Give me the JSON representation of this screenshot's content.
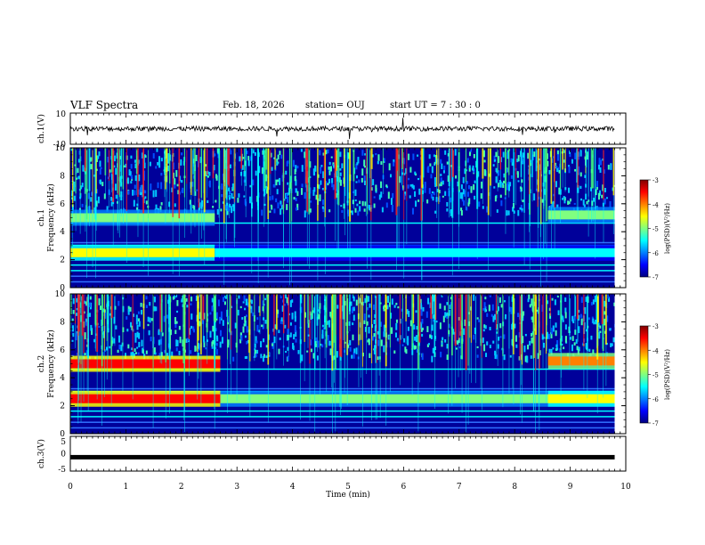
{
  "header": {
    "title": "VLF Spectra",
    "date": "Feb. 18, 2026",
    "station": "station= OUJ",
    "start": "start  UT  =  7 : 30 : 0"
  },
  "panels": {
    "ch1": {
      "label": "ch.1(V)",
      "ticks": [
        "10",
        "-10"
      ],
      "ymin": -10,
      "ymax": 10
    },
    "spec1": {
      "label": "ch.1",
      "ylabel": "Frequency (kHz)",
      "ticks": [
        "0",
        "2",
        "4",
        "6",
        "8",
        "10"
      ]
    },
    "spec2": {
      "label": "ch.2",
      "ylabel": "Frequency (kHz)",
      "ticks": [
        "0",
        "2",
        "4",
        "6",
        "8",
        "10"
      ]
    },
    "ch3": {
      "label": "ch.3(V)",
      "ticks": [
        "5",
        "0",
        "-5"
      ],
      "ymin": -5,
      "ymax": 5,
      "value": -1
    }
  },
  "xaxis": {
    "label": "Time (min)",
    "ticks": [
      "0",
      "1",
      "2",
      "3",
      "4",
      "5",
      "6",
      "7",
      "8",
      "9",
      "10"
    ]
  },
  "colorbar": {
    "label": "log(PSD)(V²/Hz)",
    "ticks": [
      "-3",
      "-4",
      "-5",
      "-6",
      "-7"
    ]
  },
  "colors": {
    "background": "#ffffff",
    "axis": "#000000",
    "cmap": [
      "#000080",
      "#0000ff",
      "#0080ff",
      "#00ffff",
      "#80ff80",
      "#ffff00",
      "#ff8000",
      "#ff0000",
      "#800000"
    ]
  },
  "chart_data": {
    "type": "heatmap",
    "title": "VLF Spectra",
    "xlabel": "Time (min)",
    "ylabel": "Frequency (kHz)",
    "xlim": [
      0,
      10
    ],
    "ylim": [
      0,
      10
    ],
    "clim": [
      -7,
      -3
    ],
    "data_end_min": 9.8,
    "series": [
      {
        "name": "ch.1",
        "bands": [
          {
            "freq_khz": 5.0,
            "start_min": 0.0,
            "end_min": 2.6,
            "level": -4.8
          },
          {
            "freq_khz": 2.5,
            "start_min": 0.0,
            "end_min": 2.6,
            "level": -4.6
          },
          {
            "freq_khz": 2.5,
            "start_min": 2.6,
            "end_min": 9.8,
            "level": -5.3
          },
          {
            "freq_khz": 5.2,
            "start_min": 8.6,
            "end_min": 9.8,
            "level": -5.2
          }
        ]
      },
      {
        "name": "ch.2",
        "bands": [
          {
            "freq_khz": 5.0,
            "start_min": 0.0,
            "end_min": 2.7,
            "level": -3.5
          },
          {
            "freq_khz": 2.5,
            "start_min": 0.0,
            "end_min": 2.7,
            "level": -3.6
          },
          {
            "freq_khz": 2.5,
            "start_min": 2.7,
            "end_min": 9.8,
            "level": -5.2
          },
          {
            "freq_khz": 5.2,
            "start_min": 8.6,
            "end_min": 9.8,
            "level": -4.2
          },
          {
            "freq_khz": 2.5,
            "start_min": 8.6,
            "end_min": 9.8,
            "level": -4.4
          }
        ]
      }
    ],
    "ch1_waveform_range_v": [
      -10,
      10
    ],
    "ch3_level_v": -1
  }
}
